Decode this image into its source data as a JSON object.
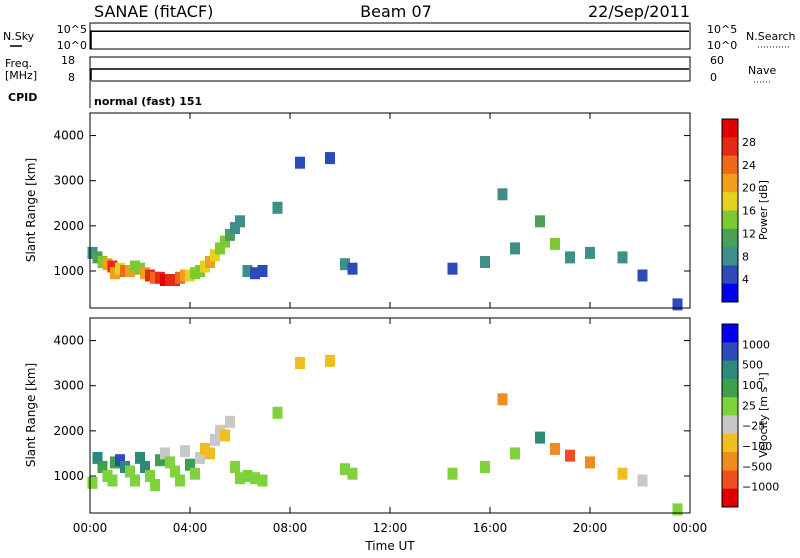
{
  "header": {
    "station": "SANAE (fitACF)",
    "beam": "Beam 07",
    "date": "22/Sep/2011"
  },
  "top_panels": {
    "nsky_label": "N.Sky",
    "nsearch_label": "N.Search",
    "nsky_ticks": [
      "10^5",
      "10^0"
    ],
    "nsearch_ticks": [
      "10^5",
      "10^0"
    ],
    "freq_label_1": "Freq.",
    "freq_label_2": "[MHz]",
    "freq_ticks": [
      "18",
      "8"
    ],
    "nave_label": "Nave",
    "nave_ticks": [
      "60",
      "0"
    ],
    "cpid_label": "CPID",
    "cpid_text": "normal (fast) 151"
  },
  "chart_data": [
    {
      "type": "heatmap",
      "name": "power",
      "ylabel": "Slant Range [km]",
      "xlabel": "",
      "xticks": [
        "00:00",
        "04:00",
        "08:00",
        "12:00",
        "16:00",
        "20:00",
        "00:00"
      ],
      "xlim": [
        0,
        24
      ],
      "ylim": [
        180,
        4500
      ],
      "yticks": [
        "4000",
        "3000",
        "2000",
        "1000"
      ],
      "colorbar": {
        "label": "Power [dB]",
        "ticks": [
          "28",
          "24",
          "20",
          "16",
          "12",
          "8",
          "4"
        ],
        "range": [
          0,
          30
        ],
        "colors": [
          "#0000f0",
          "#2c4ab8",
          "#3e8f8a",
          "#4aa05a",
          "#7ec832",
          "#e6d21e",
          "#f0a01e",
          "#ee6a1a",
          "#e42a14",
          "#e00000"
        ]
      },
      "cells": [
        [
          0.1,
          1400,
          8
        ],
        [
          0.3,
          1300,
          10
        ],
        [
          0.5,
          1200,
          14
        ],
        [
          0.7,
          1150,
          20
        ],
        [
          0.9,
          1100,
          24
        ],
        [
          1.0,
          950,
          18
        ],
        [
          1.2,
          1050,
          16
        ],
        [
          1.4,
          1000,
          22
        ],
        [
          1.6,
          1000,
          18
        ],
        [
          1.8,
          1100,
          14
        ],
        [
          2.0,
          1050,
          12
        ],
        [
          2.2,
          950,
          20
        ],
        [
          2.4,
          900,
          24
        ],
        [
          2.6,
          850,
          22
        ],
        [
          2.8,
          850,
          26
        ],
        [
          3.0,
          800,
          28
        ],
        [
          3.2,
          800,
          26
        ],
        [
          3.4,
          800,
          24
        ],
        [
          3.6,
          850,
          22
        ],
        [
          3.8,
          900,
          18
        ],
        [
          4.0,
          900,
          16
        ],
        [
          4.2,
          950,
          14
        ],
        [
          4.4,
          1000,
          12
        ],
        [
          4.6,
          1100,
          16
        ],
        [
          4.8,
          1200,
          18
        ],
        [
          5.0,
          1350,
          16
        ],
        [
          5.2,
          1500,
          14
        ],
        [
          5.4,
          1650,
          12
        ],
        [
          5.6,
          1800,
          10
        ],
        [
          5.8,
          1950,
          8
        ],
        [
          6.0,
          2100,
          8
        ],
        [
          6.3,
          1000,
          6
        ],
        [
          6.6,
          950,
          4
        ],
        [
          6.9,
          1000,
          4
        ],
        [
          7.5,
          2400,
          6
        ],
        [
          8.4,
          3400,
          4
        ],
        [
          9.6,
          3500,
          4
        ],
        [
          10.2,
          1150,
          6
        ],
        [
          10.5,
          1050,
          4
        ],
        [
          14.5,
          1050,
          4
        ],
        [
          15.8,
          1200,
          6
        ],
        [
          16.5,
          2700,
          8
        ],
        [
          17.0,
          1500,
          6
        ],
        [
          18.0,
          2100,
          10
        ],
        [
          18.6,
          1600,
          12
        ],
        [
          19.2,
          1300,
          8
        ],
        [
          20.0,
          1400,
          6
        ],
        [
          21.3,
          1300,
          8
        ],
        [
          22.1,
          900,
          4
        ],
        [
          23.5,
          260,
          4
        ]
      ]
    },
    {
      "type": "heatmap",
      "name": "velocity",
      "ylabel": "Slant Range [km]",
      "xlabel": "Time UT",
      "xticks": [
        "00:00",
        "04:00",
        "08:00",
        "12:00",
        "16:00",
        "20:00",
        "00:00"
      ],
      "xlim": [
        0,
        24
      ],
      "ylim": [
        180,
        4500
      ],
      "yticks": [
        "4000",
        "3000",
        "2000",
        "1000"
      ],
      "colorbar": {
        "label": "Velocity [m s⁻¹]",
        "ticks": [
          "1000",
          "500",
          "100",
          "25",
          "−25",
          "−100",
          "−500",
          "−1000"
        ],
        "range": [
          -1200,
          1200
        ],
        "colors": [
          "#e00000",
          "#ee5020",
          "#f08c1e",
          "#f0be1e",
          "#c8c8c8",
          "#7ed23c",
          "#3ea04a",
          "#2c8a7a",
          "#2c4ab8",
          "#0000f0"
        ]
      },
      "cells": [
        [
          0.1,
          850,
          200
        ],
        [
          0.3,
          1400,
          600
        ],
        [
          0.5,
          1200,
          400
        ],
        [
          0.7,
          1000,
          200
        ],
        [
          0.9,
          900,
          100
        ],
        [
          1.0,
          1300,
          300
        ],
        [
          1.2,
          1350,
          800
        ],
        [
          1.4,
          1200,
          700
        ],
        [
          1.6,
          1100,
          200
        ],
        [
          1.8,
          900,
          50
        ],
        [
          2.0,
          1400,
          600
        ],
        [
          2.2,
          1200,
          500
        ],
        [
          2.4,
          1000,
          150
        ],
        [
          2.6,
          800,
          80
        ],
        [
          2.8,
          1350,
          300
        ],
        [
          3.0,
          1500,
          -150
        ],
        [
          3.2,
          1300,
          200
        ],
        [
          3.4,
          1100,
          150
        ],
        [
          3.6,
          900,
          60
        ],
        [
          3.8,
          1550,
          -200
        ],
        [
          4.0,
          1250,
          250
        ],
        [
          4.2,
          1050,
          120
        ],
        [
          4.4,
          1400,
          -180
        ],
        [
          4.6,
          1600,
          -250
        ],
        [
          4.8,
          1500,
          -400
        ],
        [
          5.0,
          1800,
          -200
        ],
        [
          5.2,
          2000,
          -150
        ],
        [
          5.4,
          1900,
          -300
        ],
        [
          5.6,
          2200,
          -120
        ],
        [
          5.8,
          1200,
          60
        ],
        [
          6.0,
          950,
          20
        ],
        [
          6.3,
          1000,
          0
        ],
        [
          6.6,
          950,
          10
        ],
        [
          6.9,
          900,
          0
        ],
        [
          7.5,
          2400,
          0
        ],
        [
          8.4,
          3500,
          -300
        ],
        [
          9.6,
          3550,
          -400
        ],
        [
          10.2,
          1150,
          0
        ],
        [
          10.5,
          1050,
          0
        ],
        [
          14.5,
          1050,
          0
        ],
        [
          15.8,
          1200,
          0
        ],
        [
          16.5,
          2700,
          -700
        ],
        [
          17.0,
          1500,
          0
        ],
        [
          18.0,
          1850,
          700
        ],
        [
          18.6,
          1600,
          -500
        ],
        [
          19.2,
          1450,
          -800
        ],
        [
          20.0,
          1300,
          -600
        ],
        [
          21.3,
          1050,
          -300
        ],
        [
          22.1,
          900,
          -150
        ],
        [
          23.5,
          260,
          0
        ]
      ]
    }
  ]
}
